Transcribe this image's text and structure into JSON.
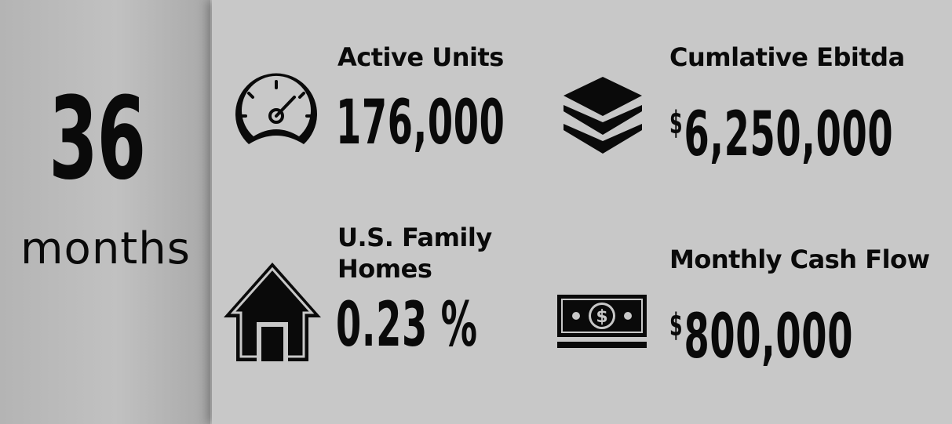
{
  "period": {
    "number": "36",
    "unit": "months"
  },
  "metrics": [
    {
      "label": "Active Units",
      "currency": "",
      "value": "176,000",
      "icon": "speedometer-icon"
    },
    {
      "label": "Cumlative Ebitda",
      "currency": "$",
      "value": "6,250,000",
      "icon": "layers-icon"
    },
    {
      "label_line1": "U.S. Family",
      "label_line2": "Homes",
      "currency": "",
      "value": "0.23 %",
      "icon": "house-icon"
    },
    {
      "label": "Monthly Cash Flow",
      "currency": "$",
      "value": "800,000",
      "icon": "cash-icon"
    }
  ],
  "colors": {
    "background": "#c8c8c8",
    "text": "#0a0a0a"
  }
}
